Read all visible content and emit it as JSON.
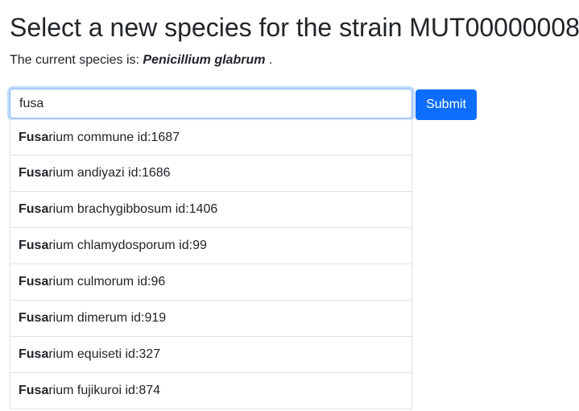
{
  "page": {
    "title": "Select a new species for the strain MUT00000008",
    "current_prefix": "The current species is: ",
    "current_species": "Penicillium glabrum",
    "current_suffix": " ."
  },
  "form": {
    "search_value": "fusa",
    "submit_label": "Submit"
  },
  "suggestions": [
    {
      "match": "Fusa",
      "rest": "rium commune id:1687"
    },
    {
      "match": "Fusa",
      "rest": "rium andiyazi id:1686"
    },
    {
      "match": "Fusa",
      "rest": "rium brachygibbosum id:1406"
    },
    {
      "match": "Fusa",
      "rest": "rium chlamydosporum id:99"
    },
    {
      "match": "Fusa",
      "rest": "rium culmorum id:96"
    },
    {
      "match": "Fusa",
      "rest": "rium dimerum id:919"
    },
    {
      "match": "Fusa",
      "rest": "rium equiseti id:327"
    },
    {
      "match": "Fusa",
      "rest": "rium fujikuroi id:874"
    }
  ],
  "colors": {
    "accent": "#0d6efd",
    "text": "#212529",
    "border": "#dee2e6",
    "focus_border": "#86b7fe"
  }
}
